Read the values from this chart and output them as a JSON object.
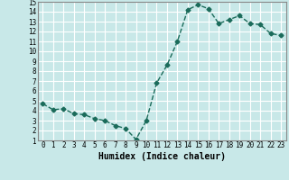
{
  "x": [
    0,
    1,
    2,
    3,
    4,
    5,
    6,
    7,
    8,
    9,
    10,
    11,
    12,
    13,
    14,
    15,
    16,
    17,
    18,
    19,
    20,
    21,
    22,
    23
  ],
  "y": [
    4.7,
    4.1,
    4.2,
    3.7,
    3.6,
    3.2,
    3.0,
    2.5,
    2.2,
    1.1,
    3.0,
    6.8,
    8.6,
    11.0,
    14.2,
    14.7,
    14.3,
    12.8,
    13.2,
    13.6,
    12.8,
    12.7,
    11.8,
    11.6
  ],
  "line_color": "#1a6b5a",
  "marker": "D",
  "markersize": 2.5,
  "linewidth": 1.0,
  "xlabel": "Humidex (Indice chaleur)",
  "background_color": "#c8e8e8",
  "grid_color": "#ffffff",
  "ylim": [
    1,
    15
  ],
  "xlim": [
    -0.5,
    23.5
  ],
  "yticks": [
    1,
    2,
    3,
    4,
    5,
    6,
    7,
    8,
    9,
    10,
    11,
    12,
    13,
    14,
    15
  ],
  "xticks": [
    0,
    1,
    2,
    3,
    4,
    5,
    6,
    7,
    8,
    9,
    10,
    11,
    12,
    13,
    14,
    15,
    16,
    17,
    18,
    19,
    20,
    21,
    22,
    23
  ],
  "tick_fontsize": 5.5,
  "xlabel_fontsize": 7.0
}
